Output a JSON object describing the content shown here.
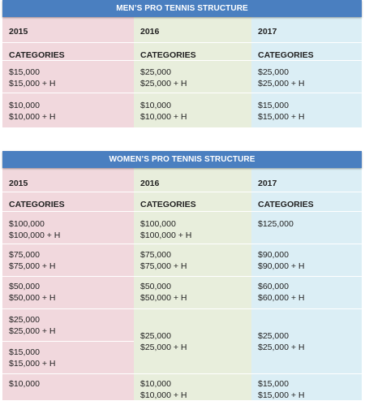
{
  "mens": {
    "title": "MEN’S PRO TENNIS STRUCTURE",
    "years": [
      "2015",
      "2016",
      "2017"
    ],
    "categories_label": "CATEGORIES",
    "rows": [
      [
        [
          "$15,000",
          "$15,000 + H"
        ],
        [
          "$25,000",
          "$25,000 + H"
        ],
        [
          "$25,000",
          "$25,000 + H"
        ]
      ],
      [
        [
          "$10,000",
          "$10,000 + H"
        ],
        [
          "$10,000",
          "$10,000 + H"
        ],
        [
          "$15,000",
          "$15,000 + H"
        ]
      ]
    ]
  },
  "womens": {
    "title": "WOMEN’S PRO TENNIS STRUCTURE",
    "years": [
      "2015",
      "2016",
      "2017"
    ],
    "categories_label": "CATEGORIES",
    "col2015": [
      [
        "$100,000",
        "$100,000 + H"
      ],
      [
        "$75,000",
        "$75,000 + H"
      ],
      [
        "$50,000",
        "$50,000 + H"
      ],
      [
        "$25,000",
        "$25,000 + H"
      ],
      [
        "$15,000",
        "$15,000 + H"
      ],
      [
        "$10,000"
      ]
    ],
    "col2016": [
      [
        "$100,000",
        "$100,000 + H"
      ],
      [
        "$75,000",
        "$75,000 + H"
      ],
      [
        "$50,000",
        "$50,000 + H"
      ],
      [
        "$25,000",
        "$25,000 + H"
      ],
      [
        "$10,000",
        "$10,000 + H"
      ]
    ],
    "col2017": [
      [
        "$125,000"
      ],
      [
        "$90,000",
        "$90,000 + H"
      ],
      [
        "$60,000",
        "$60,000 + H"
      ],
      [
        "$25,000",
        "$25,000 + H"
      ],
      [
        "$15,000",
        "$15,000 + H"
      ]
    ]
  }
}
